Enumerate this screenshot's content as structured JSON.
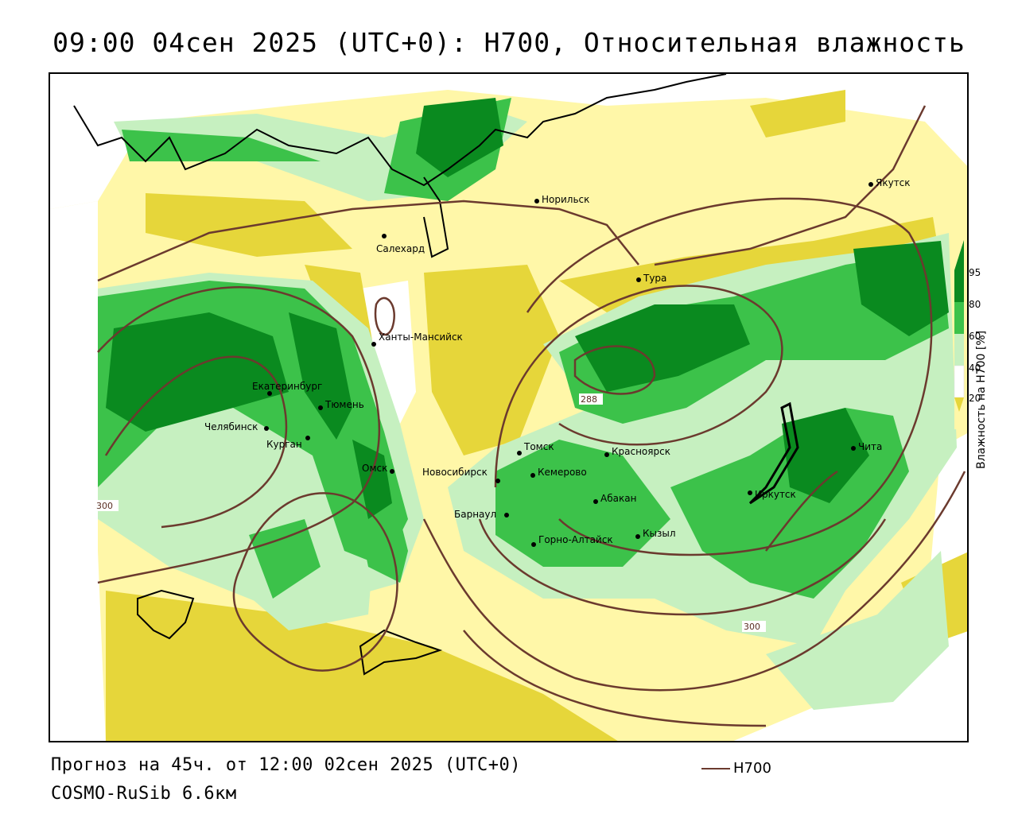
{
  "title": "09:00 04сен 2025 (UTC+0): H700, Относительная влажность",
  "footer": {
    "forecast": "Прогноз на 45ч. от 12:00 02сен 2025 (UTC+0)",
    "model": "COSMO-RuSib 6.6км"
  },
  "legend": {
    "title": "Влажность на H700 [%]",
    "ticks": [
      "95",
      "80",
      "60",
      "40",
      "20"
    ],
    "colors": {
      "c95": "#0a8a1f",
      "c80": "#3cc24a",
      "c60": "#c6f0c0",
      "c40": "#ffffff",
      "c20": "#fff7a8",
      "c0": "#e6d63a"
    }
  },
  "line_key": {
    "label": "H700",
    "color": "#6b3a2e"
  },
  "isolines": {
    "label1": "300",
    "label2": "288",
    "label3": "300"
  },
  "cities": [
    {
      "name": "Норильск"
    },
    {
      "name": "Якутск"
    },
    {
      "name": "Салехард"
    },
    {
      "name": "Тура"
    },
    {
      "name": "Ханты-Мансийск"
    },
    {
      "name": "Екатеринбург"
    },
    {
      "name": "Тюмень"
    },
    {
      "name": "Челябинск"
    },
    {
      "name": "Курган"
    },
    {
      "name": "Омск"
    },
    {
      "name": "Томск"
    },
    {
      "name": "Красноярск"
    },
    {
      "name": "Новосибирск"
    },
    {
      "name": "Кемерово"
    },
    {
      "name": "Абакан"
    },
    {
      "name": "Барнаул"
    },
    {
      "name": "Горно-Алтайск"
    },
    {
      "name": "Кызыл"
    },
    {
      "name": "Иркутск"
    },
    {
      "name": "Чита"
    }
  ]
}
